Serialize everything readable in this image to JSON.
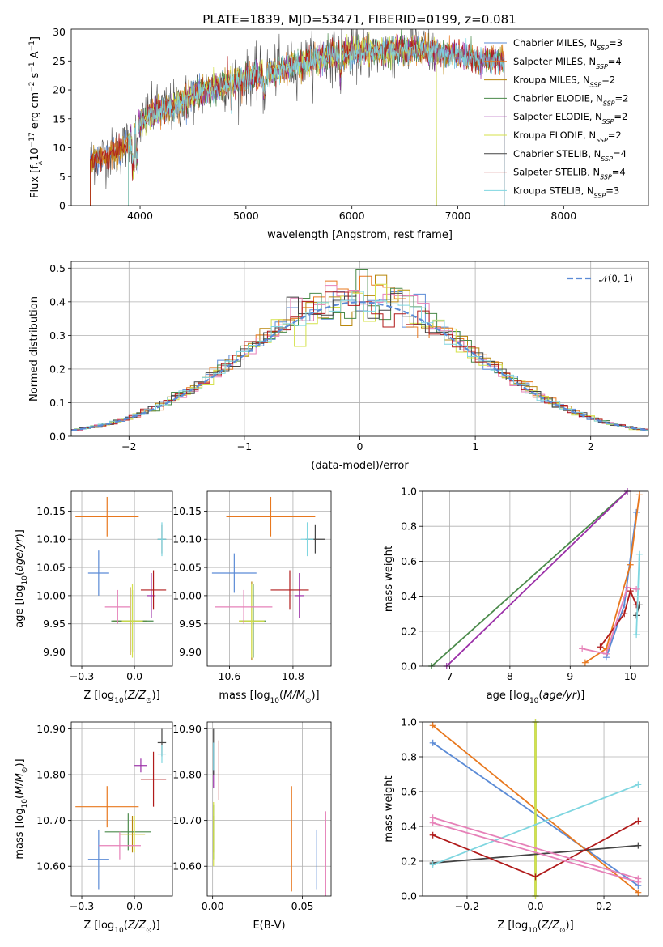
{
  "figure": {
    "title": "PLATE=1839, MJD=53471, FIBERID=0199, z=0.081"
  },
  "models": [
    {
      "name": "Chabrier MILES, N_SSP=3",
      "base": "Chabrier MILES, N",
      "nssp": "3",
      "color": "#5b8bd6"
    },
    {
      "name": "Salpeter MILES, N_SSP=4",
      "base": "Salpeter MILES, N",
      "nssp": "4",
      "color": "#e8781e"
    },
    {
      "name": "Kroupa MILES, N_SSP=2",
      "base": "Kroupa MILES, N",
      "nssp": "2",
      "color": "#b8860b"
    },
    {
      "name": "Chabrier ELODIE, N_SSP=2",
      "base": "Chabrier ELODIE, N",
      "nssp": "2",
      "color": "#4a8a4a"
    },
    {
      "name": "Salpeter ELODIE, N_SSP=2",
      "base": "Salpeter ELODIE, N",
      "nssp": "2",
      "color": "#9b30a8"
    },
    {
      "name": "Kroupa ELODIE, N_SSP=2",
      "base": "Kroupa ELODIE, N",
      "nssp": "2",
      "color": "#d4e24a"
    },
    {
      "name": "Chabrier STELIB, N_SSP=4",
      "base": "Chabrier STELIB, N",
      "nssp": "4",
      "color": "#444444"
    },
    {
      "name": "Salpeter STELIB, N_SSP=4",
      "base": "Salpeter STELIB, N",
      "nssp": "4",
      "color": "#b01a1a"
    },
    {
      "name": "Kroupa STELIB, N_SSP=3",
      "base": "Kroupa STELIB, N",
      "nssp": "3",
      "color": "#7fd6e0"
    }
  ],
  "chart_data": [
    {
      "id": "spectrum",
      "type": "line",
      "xlabel": "wavelength [Angstrom, rest frame]",
      "ylabel": "Flux [f_λ 10^-17 erg cm^-2 s^-1 A^-1]",
      "xlim": [
        3350,
        8800
      ],
      "ylim": [
        0,
        30.5
      ],
      "xticks": [
        4000,
        5000,
        6000,
        7000,
        8000
      ],
      "yticks": [
        0,
        5,
        10,
        15,
        20,
        25,
        30
      ],
      "legend_position": "top-right",
      "grid": false,
      "x_range_by_model": [
        [
          3530,
          7440
        ],
        [
          3530,
          7440
        ],
        [
          3530,
          7440
        ],
        [
          3890,
          7440
        ],
        [
          3890,
          7440
        ],
        [
          3890,
          6800
        ],
        [
          3530,
          6800
        ],
        [
          3530,
          7440
        ],
        [
          3890,
          7440
        ]
      ],
      "continuum_points": [
        [
          3550,
          8
        ],
        [
          3650,
          8.5
        ],
        [
          3800,
          9.5
        ],
        [
          3900,
          11
        ],
        [
          3990,
          14
        ],
        [
          4050,
          15
        ],
        [
          4100,
          16
        ],
        [
          4300,
          17
        ],
        [
          4500,
          19
        ],
        [
          4800,
          21
        ],
        [
          5000,
          22
        ],
        [
          5200,
          23
        ],
        [
          5500,
          24.5
        ],
        [
          5800,
          26
        ],
        [
          6000,
          26.5
        ],
        [
          6300,
          26.5
        ],
        [
          6600,
          27
        ],
        [
          7000,
          26
        ],
        [
          7200,
          25
        ],
        [
          7400,
          25
        ]
      ]
    },
    {
      "id": "residual-histogram",
      "type": "line",
      "xlabel": "(data-model)/error",
      "ylabel": "Normed distribution",
      "xlim": [
        -2.5,
        2.5
      ],
      "ylim": [
        0,
        0.52
      ],
      "xticks": [
        -2,
        -1,
        0,
        1,
        2
      ],
      "yticks": [
        0.0,
        0.1,
        0.2,
        0.3,
        0.4,
        0.5
      ],
      "legend": "𝒩(0, 1)",
      "legend_position": "top-right",
      "grid": true,
      "bin_width": 0.1
    },
    {
      "id": "age-vs-z",
      "type": "scatter",
      "xlabel": "Z [log10(Z/Z⊙)]",
      "ylabel": "age  [log10(age/yr)]",
      "xlim": [
        -0.3,
        0.18
      ],
      "ylim": [
        9.875,
        10.185
      ],
      "xticks": [
        -0.25,
        0.0
      ],
      "yticks": [
        9.9,
        9.95,
        10.0,
        10.05,
        10.1,
        10.15
      ],
      "grid": true,
      "points": [
        {
          "model": 0,
          "x": -0.17,
          "y": 10.04,
          "xerr": 0.05,
          "yerr": 0.04
        },
        {
          "model": 1,
          "x": -0.13,
          "y": 10.14,
          "xerr": 0.15,
          "yerr": 0.035
        },
        {
          "model": 2,
          "x": -0.02,
          "y": 9.955,
          "xerr": 0.08,
          "yerr": 0.06
        },
        {
          "model": 3,
          "x": -0.01,
          "y": 9.955,
          "xerr": 0.1,
          "yerr": 0.055
        },
        {
          "model": 4,
          "x": 0.08,
          "y": 10.0,
          "xerr": 0.02,
          "yerr": 0.04
        },
        {
          "model": 5,
          "x": -0.01,
          "y": 9.955,
          "xerr": 0.05,
          "yerr": 0.065
        },
        {
          "model": 6,
          "x": 0.13,
          "y": 10.1,
          "xerr": 0.02,
          "yerr": 0.025
        },
        {
          "model": 7,
          "x": 0.09,
          "y": 10.01,
          "xerr": 0.06,
          "yerr": 0.035
        },
        {
          "model": 8,
          "x": 0.13,
          "y": 10.1,
          "xerr": 0.02,
          "yerr": 0.03
        },
        {
          "model": 4,
          "x": -0.08,
          "y": 9.98,
          "xerr": 0.06,
          "yerr": 0.03,
          "color": "#e681b8"
        }
      ]
    },
    {
      "id": "age-vs-mass",
      "type": "scatter",
      "xlabel": "mass [log10(M/M⊙)]",
      "ylabel": "",
      "xlim": [
        10.53,
        10.92
      ],
      "ylim": [
        9.875,
        10.185
      ],
      "xticks": [
        10.6,
        10.8
      ],
      "yticks": [
        9.9,
        9.95,
        10.0,
        10.05,
        10.1,
        10.15
      ],
      "grid": true,
      "points": [
        {
          "model": 0,
          "x": 10.615,
          "y": 10.04,
          "xerr": 0.07,
          "yerr": 0.035
        },
        {
          "model": 1,
          "x": 10.73,
          "y": 10.14,
          "xerr": 0.14,
          "yerr": 0.035
        },
        {
          "model": 2,
          "x": 10.67,
          "y": 9.955,
          "xerr": 0.04,
          "yerr": 0.07
        },
        {
          "model": 3,
          "x": 10.675,
          "y": 9.955,
          "xerr": 0.04,
          "yerr": 0.065
        },
        {
          "model": 4,
          "x": 10.82,
          "y": 10.0,
          "xerr": 0.015,
          "yerr": 0.04
        },
        {
          "model": 5,
          "x": 10.67,
          "y": 9.955,
          "xerr": 0.04,
          "yerr": 0.065
        },
        {
          "model": 6,
          "x": 10.87,
          "y": 10.1,
          "xerr": 0.03,
          "yerr": 0.025
        },
        {
          "model": 7,
          "x": 10.79,
          "y": 10.01,
          "xerr": 0.06,
          "yerr": 0.035
        },
        {
          "model": 8,
          "x": 10.845,
          "y": 10.1,
          "xerr": 0.02,
          "yerr": 0.03
        },
        {
          "model": 4,
          "x": 10.645,
          "y": 9.98,
          "xerr": 0.09,
          "yerr": 0.03,
          "color": "#e681b8"
        }
      ]
    },
    {
      "id": "weight-vs-age",
      "type": "line",
      "xlabel": "age  [log10(age/yr)]",
      "ylabel": "mass weight",
      "xlim": [
        6.55,
        10.3
      ],
      "ylim": [
        0,
        1.0
      ],
      "xticks": [
        7,
        8,
        9,
        10
      ],
      "yticks": [
        0.0,
        0.2,
        0.4,
        0.6,
        0.8,
        1.0
      ],
      "grid": true,
      "series": [
        {
          "model": 0,
          "x": [
            9.6,
            9.9,
            10.1
          ],
          "y": [
            0.05,
            0.35,
            0.88
          ]
        },
        {
          "model": 1,
          "x": [
            9.25,
            9.6,
            10.0,
            10.15
          ],
          "y": [
            0.02,
            0.1,
            0.58,
            0.98
          ]
        },
        {
          "model": 3,
          "x": [
            6.7,
            9.95
          ],
          "y": [
            0.0,
            1.0
          ]
        },
        {
          "model": 4,
          "x": [
            6.95,
            9.95
          ],
          "y": [
            0.0,
            1.0
          ]
        },
        {
          "model": 6,
          "x": [
            10.1,
            10.15
          ],
          "y": [
            0.29,
            0.35
          ]
        },
        {
          "model": 7,
          "x": [
            9.5,
            9.9,
            10.0,
            10.1
          ],
          "y": [
            0.11,
            0.3,
            0.43,
            0.35
          ]
        },
        {
          "model": 8,
          "x": [
            10.1,
            10.15
          ],
          "y": [
            0.18,
            0.64
          ]
        },
        {
          "model": 4,
          "x": [
            9.2,
            9.6,
            9.95,
            10.1
          ],
          "y": [
            0.1,
            0.07,
            0.45,
            0.44
          ],
          "color": "#e681b8"
        }
      ]
    },
    {
      "id": "mass-vs-z",
      "type": "scatter",
      "xlabel": "Z [log10(Z/Z⊙)]",
      "ylabel": "mass [log10(M/M⊙)]",
      "xlim": [
        -0.3,
        0.18
      ],
      "ylim": [
        10.535,
        10.915
      ],
      "xticks": [
        -0.25,
        0.0
      ],
      "yticks": [
        10.6,
        10.7,
        10.8,
        10.9
      ],
      "grid": true,
      "points": [
        {
          "model": 0,
          "x": -0.17,
          "y": 10.615,
          "xerr": 0.05,
          "yerr": 0.065
        },
        {
          "model": 1,
          "x": -0.13,
          "y": 10.73,
          "xerr": 0.15,
          "yerr": 0.045
        },
        {
          "model": 2,
          "x": -0.01,
          "y": 10.67,
          "xerr": 0.06,
          "yerr": 0.04
        },
        {
          "model": 3,
          "x": -0.03,
          "y": 10.675,
          "xerr": 0.11,
          "yerr": 0.04
        },
        {
          "model": 4,
          "x": 0.03,
          "y": 10.82,
          "xerr": 0.03,
          "yerr": 0.015
        },
        {
          "model": 5,
          "x": 0.0,
          "y": 10.67,
          "xerr": 0.05,
          "yerr": 0.04
        },
        {
          "model": 6,
          "x": 0.13,
          "y": 10.87,
          "xerr": 0.02,
          "yerr": 0.03
        },
        {
          "model": 7,
          "x": 0.09,
          "y": 10.79,
          "xerr": 0.06,
          "yerr": 0.06
        },
        {
          "model": 8,
          "x": 0.13,
          "y": 10.845,
          "xerr": 0.02,
          "yerr": 0.02
        },
        {
          "model": 4,
          "x": -0.07,
          "y": 10.645,
          "xerr": 0.1,
          "yerr": 0.03,
          "color": "#e681b8"
        }
      ]
    },
    {
      "id": "mass-vs-ebv",
      "type": "scatter",
      "xlabel": "E(B-V)",
      "ylabel": "",
      "xlim": [
        -0.003,
        0.066
      ],
      "ylim": [
        10.535,
        10.915
      ],
      "xticks": [
        0.0,
        0.05
      ],
      "yticks": [
        10.6,
        10.7,
        10.8,
        10.9
      ],
      "grid": true,
      "points": [
        {
          "model": 0,
          "x": 0.058,
          "y": 10.615,
          "xerr": 0,
          "yerr": 0.065
        },
        {
          "model": 1,
          "x": 0.044,
          "y": 10.66,
          "xerr": 0,
          "yerr": 0.115
        },
        {
          "model": 2,
          "x": 0.0005,
          "y": 10.67,
          "xerr": 0,
          "yerr": 0.04
        },
        {
          "model": 3,
          "x": 0.0005,
          "y": 10.675,
          "xerr": 0,
          "yerr": 0.06
        },
        {
          "model": 4,
          "x": 0.0005,
          "y": 10.82,
          "xerr": 0,
          "yerr": 0.05
        },
        {
          "model": 5,
          "x": 0.0005,
          "y": 10.67,
          "xerr": 0,
          "yerr": 0.07
        },
        {
          "model": 6,
          "x": 0.0005,
          "y": 10.85,
          "xerr": 0,
          "yerr": 0.05
        },
        {
          "model": 7,
          "x": 0.0035,
          "y": 10.81,
          "xerr": 0,
          "yerr": 0.065
        },
        {
          "model": 8,
          "x": 0.0005,
          "y": 10.84,
          "xerr": 0,
          "yerr": 0.03
        },
        {
          "model": 4,
          "x": 0.063,
          "y": 10.62,
          "xerr": 0,
          "yerr": 0.1,
          "color": "#e681b8"
        }
      ]
    },
    {
      "id": "weight-vs-z",
      "type": "line",
      "xlabel": "Z [log10(Z/Z⊙)]",
      "ylabel": "mass weight",
      "xlim": [
        -0.33,
        0.33
      ],
      "ylim": [
        0,
        1.0
      ],
      "xticks": [
        -0.2,
        0.0,
        0.2
      ],
      "yticks": [
        0.0,
        0.2,
        0.4,
        0.6,
        0.8,
        1.0
      ],
      "grid": true,
      "series": [
        {
          "model": 0,
          "x": [
            -0.3,
            0.3
          ],
          "y": [
            0.88,
            0.06
          ]
        },
        {
          "model": 1,
          "x": [
            -0.3,
            0.3
          ],
          "y": [
            0.98,
            0.02
          ]
        },
        {
          "model": 3,
          "x": [
            0.0,
            0.0
          ],
          "y": [
            0.0,
            1.0
          ]
        },
        {
          "model": 5,
          "x": [
            0.0,
            0.0
          ],
          "y": [
            0.0,
            1.0
          ]
        },
        {
          "model": 6,
          "x": [
            -0.3,
            0.3
          ],
          "y": [
            0.19,
            0.29
          ]
        },
        {
          "model": 7,
          "x": [
            -0.3,
            0.0,
            0.3
          ],
          "y": [
            0.35,
            0.11,
            0.43
          ]
        },
        {
          "model": 8,
          "x": [
            -0.3,
            0.3
          ],
          "y": [
            0.18,
            0.64
          ]
        },
        {
          "model": 4,
          "x": [
            -0.3,
            0.3
          ],
          "y": [
            0.45,
            0.1
          ],
          "color": "#e681b8"
        },
        {
          "model": 4,
          "x": [
            -0.3,
            0.3
          ],
          "y": [
            0.42,
            0.08
          ],
          "color": "#e681b8"
        }
      ]
    }
  ]
}
